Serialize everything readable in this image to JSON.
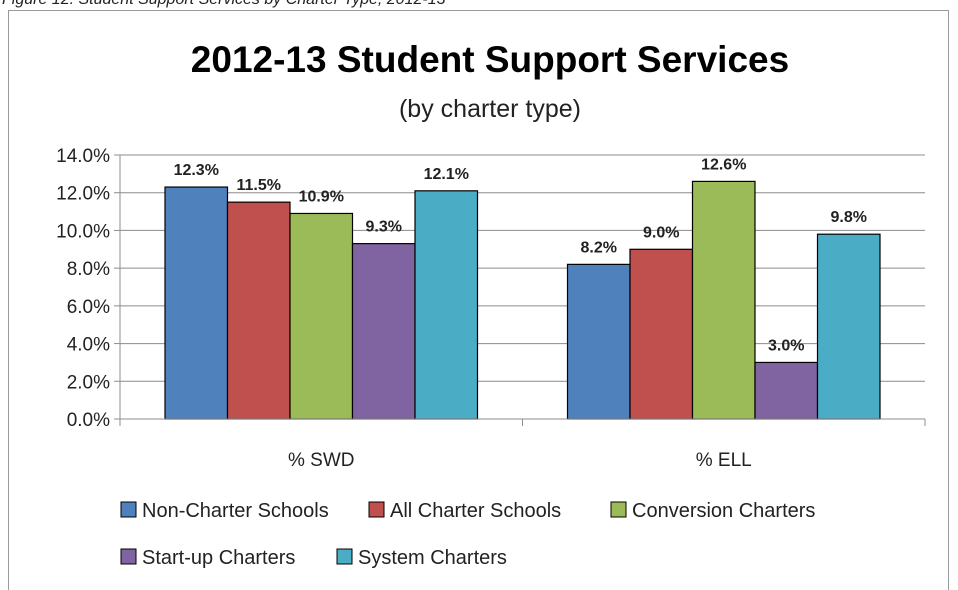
{
  "caption": "Figure 12: Student Support Services by Charter Type, 2012-13",
  "chart_data": {
    "type": "bar",
    "title": "2012-13 Student Support Services",
    "subtitle": "(by charter type)",
    "categories": [
      "% SWD",
      "% ELL"
    ],
    "ylim": [
      0,
      14
    ],
    "yticks": [
      "0.0%",
      "2.0%",
      "4.0%",
      "6.0%",
      "8.0%",
      "10.0%",
      "12.0%",
      "14.0%"
    ],
    "grid": true,
    "legend_position": "bottom",
    "series": [
      {
        "name": "Non-Charter Schools",
        "color": "#4F81BD",
        "values": [
          12.3,
          8.2
        ],
        "labels": [
          "12.3%",
          "8.2%"
        ]
      },
      {
        "name": "All Charter Schools",
        "color": "#C0504D",
        "values": [
          11.5,
          9.0
        ],
        "labels": [
          "11.5%",
          "9.0%"
        ]
      },
      {
        "name": "Conversion Charters",
        "color": "#9BBB59",
        "values": [
          10.9,
          12.6
        ],
        "labels": [
          "10.9%",
          "12.6%"
        ]
      },
      {
        "name": "Start-up Charters",
        "color": "#8064A2",
        "values": [
          9.3,
          3.0
        ],
        "labels": [
          "9.3%",
          "3.0%"
        ]
      },
      {
        "name": "System Charters",
        "color": "#4BACC6",
        "values": [
          12.1,
          9.8
        ],
        "labels": [
          "12.1%",
          "9.8%"
        ]
      }
    ]
  }
}
